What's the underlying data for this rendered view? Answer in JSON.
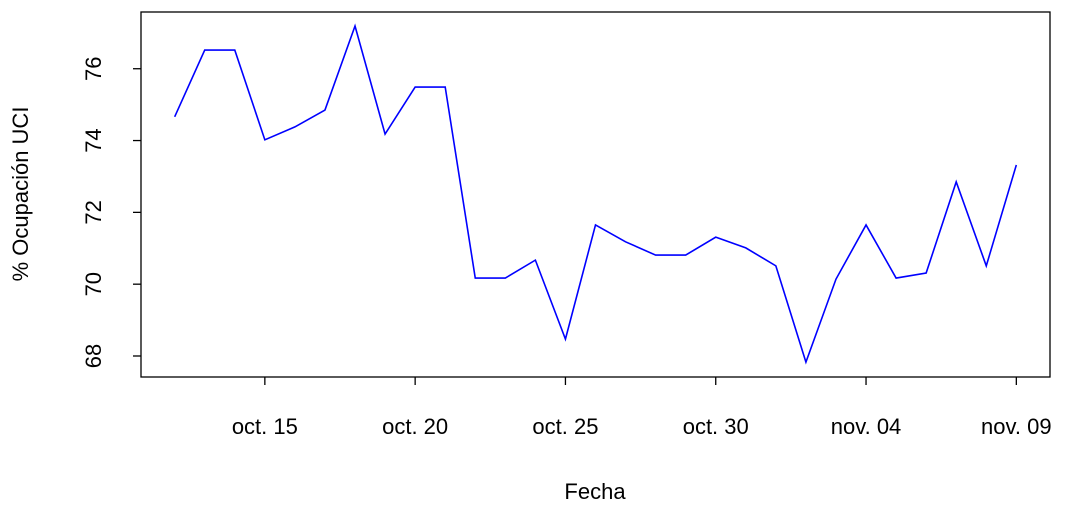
{
  "chart_data": {
    "type": "line",
    "x_label": "Fecha",
    "y_label": "% Ocupación UCI",
    "categories": [
      null,
      null,
      null,
      "oct. 15",
      null,
      null,
      null,
      null,
      "oct. 20",
      null,
      null,
      null,
      null,
      "oct. 25",
      null,
      null,
      null,
      null,
      "oct. 30",
      null,
      null,
      null,
      null,
      "nov. 04",
      null,
      null,
      null,
      null,
      "nov. 09"
    ],
    "values": [
      74.66,
      76.52,
      76.52,
      74.02,
      74.38,
      74.85,
      77.19,
      74.18,
      75.49,
      75.49,
      70.17,
      70.17,
      70.67,
      68.47,
      71.65,
      71.18,
      70.81,
      70.81,
      71.31,
      71.01,
      70.51,
      67.83,
      70.14,
      71.65,
      70.17,
      70.31,
      72.85,
      70.51,
      73.32
    ],
    "color": "#0000ff",
    "ylim": [
      67.415,
      77.58
    ],
    "yticks": [
      68,
      70,
      72,
      74,
      76
    ],
    "grid": false
  }
}
